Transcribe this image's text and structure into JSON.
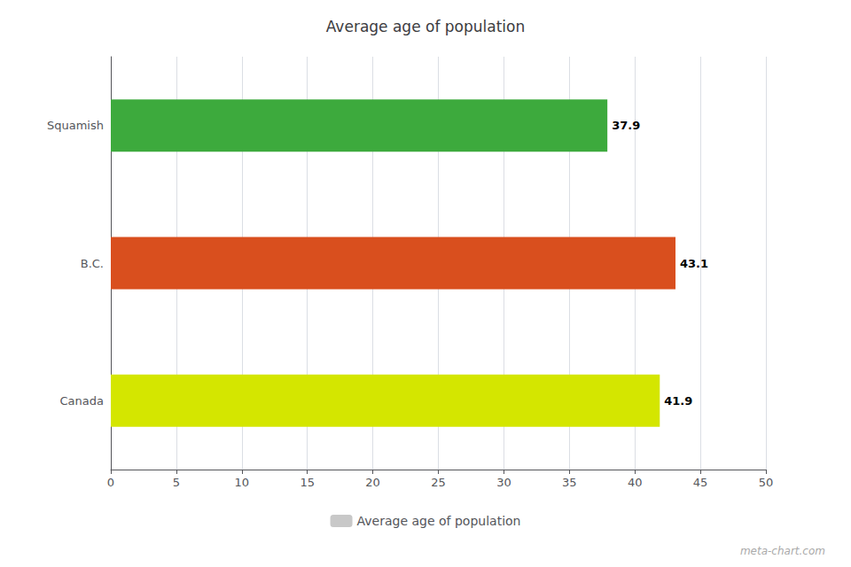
{
  "chart_data": {
    "type": "bar",
    "orientation": "horizontal",
    "title": "Average age of population",
    "categories": [
      "Canada",
      "B.C.",
      "Squamish"
    ],
    "series": [
      {
        "name": "Average age of population",
        "color": "#c8c8c8",
        "colors": [
          "#d4e600",
          "#d94f1e",
          "#3daa3d"
        ],
        "values": [
          41.9,
          43.1,
          37.9
        ]
      }
    ],
    "data_labels": true,
    "xlim": [
      0,
      50
    ],
    "xticks": [
      0,
      5,
      10,
      15,
      20,
      25,
      30,
      35,
      40,
      45,
      50
    ],
    "grid": true,
    "legend": "bottom",
    "annotations": [
      "meta-chart.com"
    ]
  }
}
